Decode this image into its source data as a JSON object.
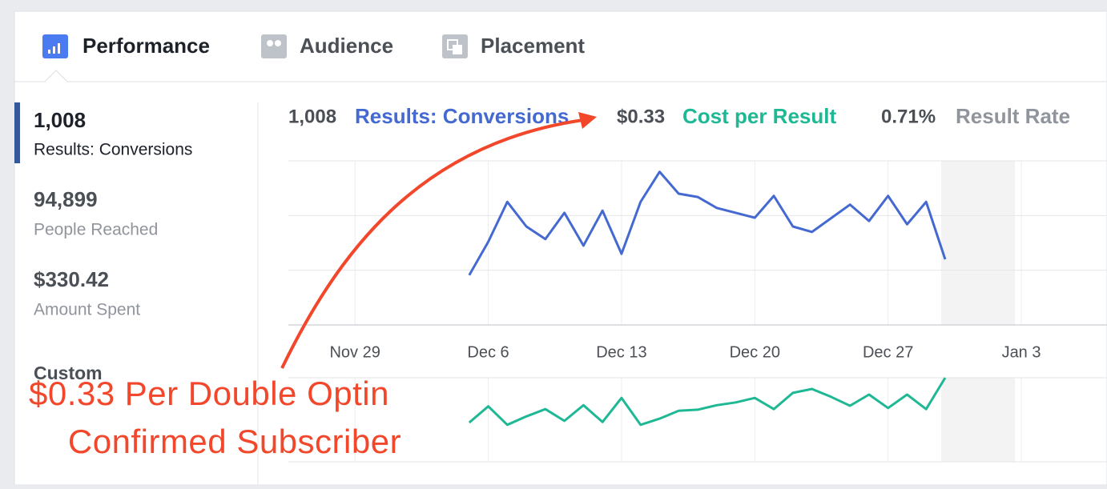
{
  "tabs": [
    "Performance",
    "Audience",
    "Placement"
  ],
  "metrics": [
    {
      "value": "1,008",
      "label": "Results: Conversions"
    },
    {
      "value": "94,899",
      "label": "People Reached"
    },
    {
      "value": "$330.42",
      "label": "Amount Spent"
    }
  ],
  "custom": "Custom",
  "summary": [
    {
      "value": "1,008",
      "label": "Results: Conversions"
    },
    {
      "value": "$0.33",
      "label": "Cost per Result"
    },
    {
      "value": "0.71%",
      "label": "Result Rate"
    }
  ],
  "chart_data": [
    {
      "type": "line",
      "categories": [
        null,
        null,
        null,
        "Nov 29",
        null,
        null,
        null,
        null,
        null,
        null,
        "Dec 6",
        null,
        null,
        null,
        null,
        null,
        null,
        "Dec 13",
        null,
        null,
        null,
        null,
        null,
        null,
        "Dec 20",
        null,
        null,
        null,
        null,
        null,
        null,
        "Dec 27",
        null,
        null,
        null,
        null,
        null,
        null,
        "Jan 3",
        null,
        null,
        null,
        null
      ],
      "series": [
        {
          "color": "#4469d0",
          "values": [
            null,
            null,
            null,
            null,
            null,
            null,
            null,
            null,
            null,
            0.91,
            1.52,
            2.25,
            1.8,
            1.57,
            2.05,
            1.45,
            2.09,
            1.3,
            2.25,
            2.8,
            2.4,
            2.34,
            2.14,
            2.05,
            1.96,
            2.36,
            1.8,
            1.7,
            1.95,
            2.2,
            1.9,
            2.36,
            1.84,
            2.25,
            1.2,
            null,
            null,
            null,
            null,
            null,
            null,
            null,
            null
          ]
        }
      ],
      "ylim": [
        0,
        3
      ],
      "yticks": [
        0,
        1,
        2,
        3
      ],
      "grid": true
    },
    {
      "type": "line",
      "series": [
        {
          "color": "#1fb894",
          "values": [
            null,
            null,
            null,
            null,
            null,
            null,
            null,
            null,
            null,
            0.7,
            0.99,
            0.66,
            0.81,
            0.94,
            0.73,
            1.01,
            0.71,
            1.14,
            0.66,
            0.77,
            0.91,
            0.93,
            1.01,
            1.06,
            1.14,
            0.94,
            1.23,
            1.3,
            1.16,
            1.0,
            1.2,
            0.96,
            1.2,
            0.94,
            1.5,
            null,
            null,
            null,
            null,
            null,
            null,
            null,
            null
          ]
        }
      ],
      "ylim": [
        0,
        1.5
      ],
      "yticks": [
        0,
        1.5
      ],
      "grid": true
    }
  ],
  "annotation": [
    "$0.33 Per Double Optin",
    "Confirmed Subscriber"
  ]
}
